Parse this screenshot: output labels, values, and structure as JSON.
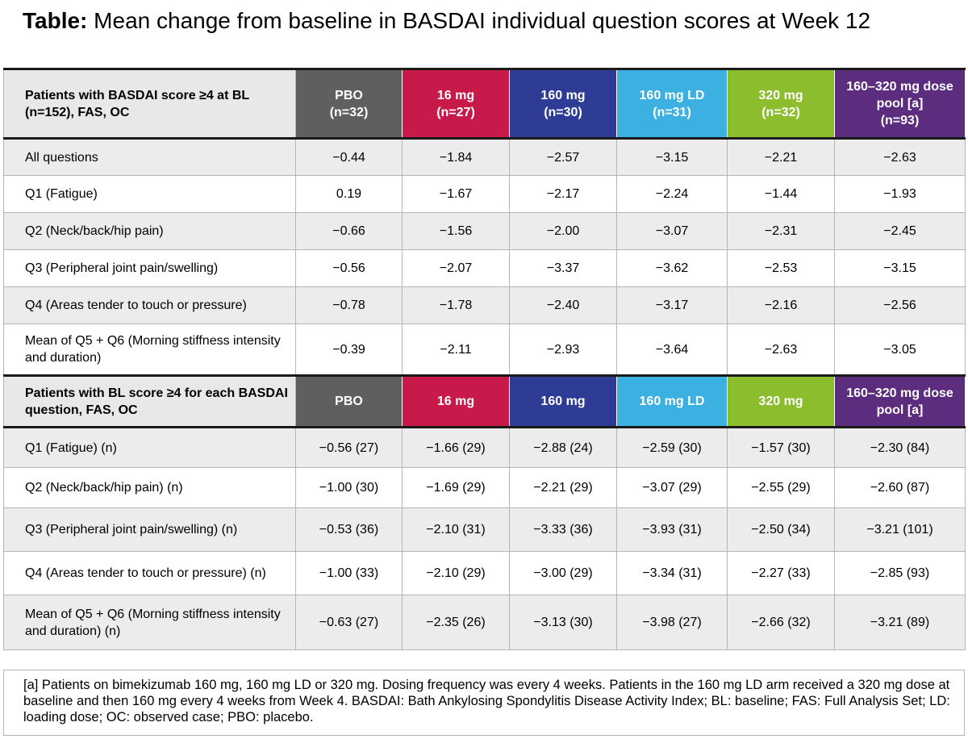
{
  "title": {
    "prefix": "Table:",
    "text": " Mean change from baseline in BASDAI individual question scores at Week 12"
  },
  "section1": {
    "header_label": "Patients with BASDAI score ≥4 at BL (n=152), FAS, OC",
    "columns": [
      {
        "name": "PBO",
        "n": "(n=32)",
        "color": "#5f5f5f"
      },
      {
        "name": "16 mg",
        "n": "(n=27)",
        "color": "#c8194b"
      },
      {
        "name": "160 mg",
        "n": "(n=30)",
        "color": "#2e3c95"
      },
      {
        "name": "160 mg LD",
        "n": "(n=31)",
        "color": "#3db0e2"
      },
      {
        "name": "320 mg",
        "n": "(n=32)",
        "color": "#8bbd2c"
      },
      {
        "name": "160–320 mg dose pool [a]",
        "n": "(n=93)",
        "color": "#5c2d7e"
      }
    ],
    "rows": [
      {
        "label": "All questions",
        "values": [
          "−0.44",
          "−1.84",
          "−2.57",
          "−3.15",
          "−2.21",
          "−2.63"
        ]
      },
      {
        "label": "Q1 (Fatigue)",
        "values": [
          "0.19",
          "−1.67",
          "−2.17",
          "−2.24",
          "−1.44",
          "−1.93"
        ]
      },
      {
        "label": "Q2 (Neck/back/hip pain)",
        "values": [
          "−0.66",
          "−1.56",
          "−2.00",
          "−3.07",
          "−2.31",
          "−2.45"
        ]
      },
      {
        "label": "Q3 (Peripheral joint pain/swelling)",
        "values": [
          "−0.56",
          "−2.07",
          "−3.37",
          "−3.62",
          "−2.53",
          "−3.15"
        ]
      },
      {
        "label": "Q4 (Areas tender to touch or pressure)",
        "values": [
          "−0.78",
          "−1.78",
          "−2.40",
          "−3.17",
          "−2.16",
          "−2.56"
        ]
      },
      {
        "label": "Mean of Q5 + Q6 (Morning stiffness intensity and duration)",
        "values": [
          "−0.39",
          "−2.11",
          "−2.93",
          "−3.64",
          "−2.63",
          "−3.05"
        ]
      }
    ]
  },
  "section2": {
    "header_label": "Patients with BL score ≥4 for each BASDAI question, FAS, OC",
    "columns": [
      {
        "name": "PBO"
      },
      {
        "name": "16 mg"
      },
      {
        "name": "160 mg"
      },
      {
        "name": "160 mg LD"
      },
      {
        "name": "320 mg"
      },
      {
        "name": "160–320 mg dose pool [a]"
      }
    ],
    "rows": [
      {
        "label": "Q1 (Fatigue) (n)",
        "values": [
          "−0.56 (27)",
          "−1.66 (29)",
          "−2.88 (24)",
          "−2.59 (30)",
          "−1.57 (30)",
          "−2.30 (84)"
        ]
      },
      {
        "label": "Q2 (Neck/back/hip pain) (n)",
        "values": [
          "−1.00 (30)",
          "−1.69 (29)",
          "−2.21 (29)",
          "−3.07 (29)",
          "−2.55 (29)",
          "−2.60 (87)"
        ]
      },
      {
        "label": "Q3 (Peripheral joint pain/swelling) (n)",
        "values": [
          "−0.53 (36)",
          "−2.10 (31)",
          "−3.33 (36)",
          "−3.93 (31)",
          "−2.50 (34)",
          "−3.21 (101)"
        ]
      },
      {
        "label": "Q4 (Areas tender to touch or pressure) (n)",
        "values": [
          "−1.00 (33)",
          "−2.10 (29)",
          "−3.00 (29)",
          "−3.34 (31)",
          "−2.27 (33)",
          "−2.85 (93)"
        ]
      },
      {
        "label": "Mean of Q5 + Q6 (Morning stiffness intensity and duration) (n)",
        "values": [
          "−0.63 (27)",
          "−2.35 (26)",
          "−3.13 (30)",
          "−3.98 (27)",
          "−2.66 (32)",
          "−3.21 (89)"
        ]
      }
    ]
  },
  "footnote": "[a] Patients on bimekizumab 160 mg, 160 mg LD or 320 mg. Dosing frequency was every 4 weeks. Patients in the 160 mg LD arm received a 320 mg dose at baseline and then 160 mg every 4 weeks from Week 4. BASDAI: Bath Ankylosing Spondylitis Disease Activity Index; BL: baseline; FAS: Full Analysis Set; LD: loading dose; OC: observed case; PBO: placebo."
}
